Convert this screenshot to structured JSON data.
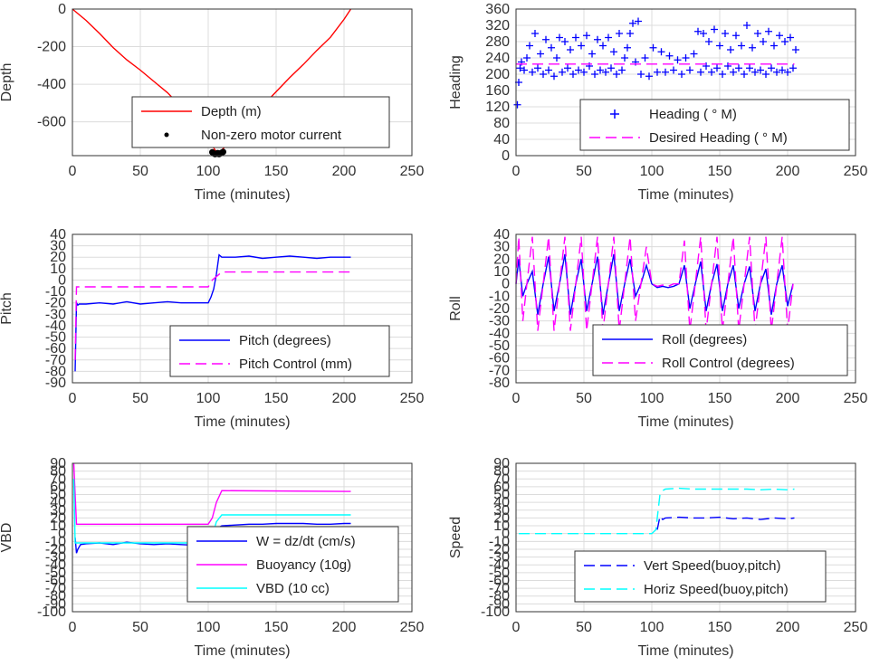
{
  "chart_data": [
    {
      "id": "depth",
      "type": "line",
      "ylabel": "Depth",
      "xlabel": "Time (minutes)",
      "xlim": [
        0,
        250
      ],
      "xticks": [
        0,
        50,
        100,
        150,
        200,
        250
      ],
      "ylim": [
        -780,
        0
      ],
      "yticks": [
        0,
        -200,
        -400,
        -600
      ],
      "grid": true,
      "legend_placement": "bottom-center",
      "series": [
        {
          "name": "Depth (m)",
          "style": "solid",
          "color": "#ff0000",
          "x": [
            0,
            10,
            20,
            30,
            40,
            50,
            60,
            70,
            80,
            90,
            100,
            105,
            108,
            112,
            120,
            130,
            140,
            150,
            160,
            170,
            180,
            190,
            200,
            205
          ],
          "y": [
            0,
            -60,
            -130,
            -205,
            -270,
            -325,
            -385,
            -445,
            -520,
            -600,
            -690,
            -750,
            -765,
            -735,
            -660,
            -585,
            -515,
            -440,
            -365,
            -295,
            -220,
            -150,
            -55,
            0
          ]
        },
        {
          "name": "Non-zero motor current",
          "style": "dots",
          "color": "#000000",
          "x": [
            103,
            104,
            105,
            106,
            107,
            108,
            109,
            110,
            111
          ],
          "y": [
            -762,
            -768,
            -772,
            -770,
            -766,
            -772,
            -768,
            -764,
            -760
          ]
        }
      ]
    },
    {
      "id": "heading",
      "type": "scatter",
      "ylabel": "Heading",
      "xlabel": "Time (minutes)",
      "xlim": [
        0,
        250
      ],
      "xticks": [
        0,
        50,
        100,
        150,
        200,
        250
      ],
      "ylim": [
        0,
        360
      ],
      "yticks": [
        0,
        40,
        80,
        120,
        160,
        200,
        240,
        280,
        320,
        360
      ],
      "grid": true,
      "legend_placement": "bottom-right",
      "series": [
        {
          "name": "Heading (   ° M)",
          "style": "plus",
          "color": "#0000ff",
          "x": [
            1,
            2,
            3,
            4,
            6,
            8,
            10,
            12,
            14,
            16,
            18,
            20,
            22,
            24,
            26,
            28,
            30,
            32,
            34,
            36,
            38,
            40,
            42,
            44,
            46,
            48,
            50,
            52,
            54,
            56,
            58,
            60,
            62,
            64,
            66,
            68,
            70,
            72,
            74,
            76,
            78,
            80,
            82,
            84,
            86,
            88,
            90,
            92,
            95,
            98,
            101,
            104,
            107,
            110,
            113,
            116,
            119,
            122,
            125,
            128,
            131,
            134,
            136,
            138,
            140,
            142,
            144,
            146,
            148,
            150,
            152,
            154,
            156,
            158,
            160,
            162,
            164,
            166,
            168,
            170,
            172,
            174,
            176,
            178,
            180,
            182,
            184,
            186,
            188,
            190,
            192,
            194,
            196,
            198,
            200,
            202,
            204,
            206
          ],
          "y": [
            125,
            180,
            215,
            230,
            210,
            240,
            270,
            205,
            300,
            215,
            250,
            200,
            285,
            210,
            265,
            195,
            240,
            290,
            205,
            280,
            215,
            260,
            200,
            290,
            210,
            270,
            205,
            295,
            220,
            250,
            200,
            285,
            210,
            270,
            205,
            290,
            215,
            255,
            200,
            300,
            210,
            240,
            265,
            300,
            325,
            230,
            330,
            200,
            240,
            195,
            265,
            205,
            255,
            205,
            245,
            210,
            235,
            200,
            240,
            210,
            250,
            305,
            205,
            300,
            220,
            280,
            205,
            310,
            215,
            270,
            200,
            300,
            220,
            260,
            205,
            295,
            215,
            270,
            200,
            320,
            215,
            265,
            205,
            300,
            210,
            280,
            200,
            305,
            215,
            270,
            205,
            295,
            210,
            280,
            205,
            290,
            215,
            260
          ]
        },
        {
          "name": "Desired Heading (   ° M)",
          "style": "dashed",
          "color": "#ff00ff",
          "x": [
            0,
            205
          ],
          "y": [
            225,
            225
          ]
        }
      ]
    },
    {
      "id": "pitch",
      "type": "line",
      "ylabel": "Pitch",
      "xlabel": "Time (minutes)",
      "xlim": [
        0,
        250
      ],
      "xticks": [
        0,
        50,
        100,
        150,
        200,
        250
      ],
      "ylim": [
        -90,
        40
      ],
      "yticks": [
        40,
        30,
        20,
        10,
        0,
        -10,
        -20,
        -30,
        -40,
        -50,
        -60,
        -70,
        -80,
        -90
      ],
      "grid": true,
      "legend_placement": "bottom-right",
      "series": [
        {
          "name": "Pitch (degrees)",
          "style": "solid",
          "color": "#0000ff",
          "x": [
            2,
            3,
            4,
            5,
            10,
            20,
            30,
            40,
            50,
            60,
            70,
            80,
            90,
            100,
            102,
            104,
            106,
            108,
            110,
            120,
            130,
            140,
            150,
            160,
            170,
            180,
            190,
            200,
            205
          ],
          "y": [
            -80,
            -20,
            -22,
            -21,
            -21,
            -20,
            -21,
            -19,
            -21,
            -20,
            -19,
            -20,
            -20,
            -20,
            -15,
            -8,
            5,
            22,
            20,
            20,
            21,
            19,
            20,
            21,
            20,
            19,
            20,
            20,
            20
          ]
        },
        {
          "name": "Pitch Control (mm)",
          "style": "dashed",
          "color": "#ff00ff",
          "x": [
            2,
            3,
            5,
            100,
            103,
            110,
            205
          ],
          "y": [
            -70,
            -6,
            -6,
            -6,
            0,
            7,
            7
          ]
        }
      ]
    },
    {
      "id": "roll",
      "type": "line",
      "ylabel": "Roll",
      "xlabel": "Time (minutes)",
      "xlim": [
        0,
        250
      ],
      "xticks": [
        0,
        50,
        100,
        150,
        200,
        250
      ],
      "ylim": [
        -80,
        40
      ],
      "yticks": [
        40,
        30,
        20,
        10,
        0,
        -10,
        -20,
        -30,
        -40,
        -50,
        -60,
        -70,
        -80
      ],
      "grid": true,
      "legend_placement": "bottom-right",
      "series": [
        {
          "name": "Roll (degrees)",
          "style": "solid",
          "color": "#0000ff",
          "x": [
            0,
            2,
            5,
            8,
            12,
            16,
            20,
            24,
            28,
            32,
            36,
            40,
            44,
            48,
            52,
            56,
            60,
            64,
            68,
            72,
            76,
            80,
            84,
            88,
            92,
            96,
            100,
            104,
            108,
            112,
            116,
            120,
            124,
            128,
            132,
            136,
            140,
            144,
            148,
            152,
            156,
            160,
            164,
            168,
            172,
            176,
            180,
            184,
            188,
            192,
            196,
            200,
            204
          ],
          "y": [
            0,
            20,
            -10,
            0,
            10,
            -25,
            0,
            22,
            -22,
            0,
            24,
            -25,
            0,
            20,
            -22,
            0,
            22,
            -25,
            0,
            24,
            -22,
            0,
            20,
            -10,
            0,
            15,
            0,
            -3,
            -2,
            -3,
            -2,
            0,
            15,
            -20,
            0,
            18,
            -22,
            0,
            16,
            -22,
            0,
            15,
            -20,
            0,
            14,
            -22,
            0,
            12,
            -25,
            0,
            15,
            -18,
            0
          ]
        },
        {
          "name": "Roll Control (degrees)",
          "style": "dashed",
          "color": "#ff00ff",
          "x": [
            0,
            2,
            5,
            8,
            12,
            16,
            20,
            24,
            28,
            32,
            36,
            40,
            44,
            48,
            52,
            56,
            60,
            64,
            68,
            72,
            76,
            80,
            84,
            88,
            92,
            96,
            100,
            104,
            108,
            112,
            116,
            120,
            124,
            128,
            132,
            136,
            140,
            144,
            148,
            152,
            156,
            160,
            164,
            168,
            172,
            176,
            180,
            184,
            188,
            192,
            196,
            200,
            204
          ],
          "y": [
            0,
            38,
            -30,
            0,
            38,
            -38,
            0,
            38,
            -38,
            0,
            38,
            -38,
            0,
            38,
            -38,
            0,
            38,
            -38,
            0,
            38,
            -38,
            0,
            38,
            -30,
            0,
            30,
            0,
            -2,
            -1,
            -2,
            0,
            0,
            35,
            -38,
            0,
            38,
            -38,
            0,
            38,
            -38,
            0,
            38,
            -38,
            0,
            38,
            -38,
            0,
            38,
            -38,
            0,
            38,
            -38,
            0
          ]
        }
      ]
    },
    {
      "id": "vbd",
      "type": "line",
      "ylabel": "VBD",
      "xlabel": "Time (minutes)",
      "xlim": [
        0,
        250
      ],
      "xticks": [
        0,
        50,
        100,
        150,
        200,
        250
      ],
      "ylim": [
        -100,
        90
      ],
      "yticks": [
        90,
        80,
        70,
        60,
        50,
        40,
        30,
        20,
        10,
        0,
        -10,
        -20,
        -30,
        -40,
        -50,
        -60,
        -70,
        -80,
        -90,
        -100
      ],
      "grid": true,
      "legend_placement": "bottom-right",
      "series": [
        {
          "name": "W = dz/dt (cm/s)",
          "style": "solid",
          "color": "#0000ff",
          "x": [
            2,
            3,
            4,
            6,
            10,
            20,
            30,
            40,
            50,
            60,
            70,
            80,
            90,
            100,
            102,
            104,
            106,
            108,
            110,
            120,
            130,
            140,
            150,
            160,
            170,
            180,
            190,
            200,
            205
          ],
          "y": [
            -5,
            -25,
            -20,
            -14,
            -13,
            -12,
            -14,
            -11,
            -13,
            -14,
            -13,
            -14,
            -15,
            -14,
            -12,
            -5,
            3,
            8,
            10,
            11,
            12,
            12,
            13,
            13,
            13,
            12,
            12,
            13,
            13
          ]
        },
        {
          "name": "Buoyancy (10g)",
          "style": "solid",
          "color": "#ff00ff",
          "x": [
            1,
            2,
            3,
            100,
            103,
            106,
            110,
            205
          ],
          "y": [
            90,
            50,
            12,
            12,
            20,
            40,
            55,
            54
          ]
        },
        {
          "name": "VBD (10 cc)",
          "style": "solid",
          "color": "#00ffff",
          "x": [
            1,
            2,
            3,
            100,
            103,
            106,
            110,
            205
          ],
          "y": [
            70,
            -12,
            -12,
            -12,
            -3,
            15,
            24,
            24
          ]
        }
      ]
    },
    {
      "id": "speed",
      "type": "line",
      "ylabel": "Speed",
      "xlabel": "Time (minutes)",
      "xlim": [
        0,
        250
      ],
      "xticks": [
        0,
        50,
        100,
        150,
        200,
        250
      ],
      "ylim": [
        -100,
        90
      ],
      "yticks": [
        90,
        80,
        70,
        60,
        50,
        40,
        30,
        20,
        10,
        0,
        -10,
        -20,
        -30,
        -40,
        -50,
        -60,
        -70,
        -80,
        -90,
        -100
      ],
      "grid": true,
      "legend_placement": "bottom-right",
      "series": [
        {
          "name": "Vert Speed(buoy,pitch)",
          "style": "dashed",
          "color": "#0000ff",
          "x": [
            104,
            106,
            108,
            110,
            120,
            130,
            140,
            150,
            160,
            170,
            180,
            190,
            200,
            205
          ],
          "y": [
            5,
            22,
            18,
            20,
            21,
            20,
            20,
            21,
            19,
            20,
            18,
            20,
            19,
            20
          ]
        },
        {
          "name": "Horiz Speed(buoy,pitch)",
          "style": "dashed",
          "color": "#00ffff",
          "x": [
            2,
            100,
            103,
            106,
            108,
            110,
            120,
            130,
            140,
            150,
            160,
            170,
            180,
            190,
            200,
            205
          ],
          "y": [
            0,
            0,
            5,
            50,
            55,
            57,
            58,
            57,
            57,
            57,
            57,
            57,
            56,
            57,
            56,
            57
          ]
        }
      ]
    }
  ]
}
